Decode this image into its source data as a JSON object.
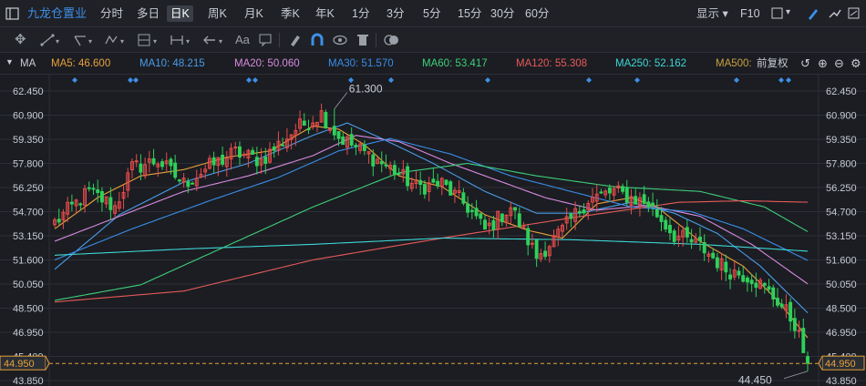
{
  "toolbar": {
    "stock_name": "九龙仓置业",
    "periods": [
      "分时",
      "多日",
      "日K",
      "周K",
      "月K",
      "季K",
      "年K",
      "1分",
      "3分",
      "5分",
      "15分",
      "30分",
      "60分"
    ],
    "active_period": "日K",
    "display_label": "显示",
    "f10_label": "F10"
  },
  "drawing_tools": {
    "text_tool_label": "Aa"
  },
  "ma_bar": {
    "indicator": "MA",
    "adjust_label": "前复权",
    "lines": [
      {
        "label": "MA5:",
        "value": "46.600",
        "color": "#e8a13a"
      },
      {
        "label": "MA10:",
        "value": "48.215",
        "color": "#4a9ce8"
      },
      {
        "label": "MA20:",
        "value": "50.060",
        "color": "#d98ae0"
      },
      {
        "label": "MA30:",
        "value": "51.570",
        "color": "#3a8de8"
      },
      {
        "label": "MA60:",
        "value": "53.417",
        "color": "#3fcf7a"
      },
      {
        "label": "MA120:",
        "value": "55.308",
        "color": "#e85a5a"
      },
      {
        "label": "MA250:",
        "value": "52.162",
        "color": "#3fd6d6"
      },
      {
        "label": "MA500:",
        "value": "",
        "color": "#c8a040"
      }
    ]
  },
  "chart_data": {
    "type": "candlestick",
    "y_ticks": [
      "62.450",
      "60.900",
      "59.350",
      "57.800",
      "56.250",
      "54.700",
      "53.150",
      "51.600",
      "50.050",
      "48.500",
      "46.950",
      "45.400",
      "43.850"
    ],
    "ylim": [
      43.85,
      62.45
    ],
    "current_price": "44.950",
    "high_label": "61.300",
    "low_label": "44.450",
    "colors": {
      "up": "#e84b4b",
      "down": "#2fd05a",
      "grid": "#2c2f36",
      "price_line": "#e8a13a"
    },
    "close_anchors": [
      [
        0,
        54.0
      ],
      [
        8,
        56.0
      ],
      [
        14,
        55.0
      ],
      [
        18,
        57.5
      ],
      [
        24,
        58.0
      ],
      [
        30,
        56.5
      ],
      [
        36,
        57.6
      ],
      [
        42,
        58.5
      ],
      [
        48,
        58.0
      ],
      [
        56,
        60.0
      ],
      [
        62,
        61.0
      ],
      [
        66,
        59.5
      ],
      [
        72,
        58.5
      ],
      [
        78,
        57.5
      ],
      [
        84,
        56.3
      ],
      [
        90,
        56.5
      ],
      [
        96,
        55.0
      ],
      [
        100,
        53.5
      ],
      [
        106,
        55.0
      ],
      [
        112,
        51.8
      ],
      [
        118,
        53.5
      ],
      [
        124,
        55.5
      ],
      [
        130,
        56.0
      ],
      [
        138,
        55.2
      ],
      [
        144,
        53.2
      ],
      [
        150,
        52.5
      ],
      [
        156,
        51.0
      ],
      [
        162,
        50.5
      ],
      [
        168,
        49.0
      ],
      [
        172,
        47.5
      ],
      [
        175,
        44.95
      ]
    ],
    "ma_lines": [
      {
        "name": "MA5",
        "color": "#e8a13a",
        "points": [
          [
            0,
            53.6
          ],
          [
            10,
            55.6
          ],
          [
            20,
            57.0
          ],
          [
            30,
            57.4
          ],
          [
            40,
            58.2
          ],
          [
            50,
            58.6
          ],
          [
            60,
            60.2
          ],
          [
            66,
            60.0
          ],
          [
            72,
            59.0
          ],
          [
            80,
            57.0
          ],
          [
            90,
            56.3
          ],
          [
            100,
            54.5
          ],
          [
            110,
            53.5
          ],
          [
            118,
            53.0
          ],
          [
            126,
            55.2
          ],
          [
            134,
            55.6
          ],
          [
            140,
            55.0
          ],
          [
            150,
            52.8
          ],
          [
            160,
            51.2
          ],
          [
            168,
            49.0
          ],
          [
            175,
            46.6
          ]
        ]
      },
      {
        "name": "MA10",
        "color": "#4a9ce8",
        "points": [
          [
            0,
            51.0
          ],
          [
            15,
            54.5
          ],
          [
            30,
            56.6
          ],
          [
            45,
            57.8
          ],
          [
            60,
            59.6
          ],
          [
            68,
            60.4
          ],
          [
            76,
            59.4
          ],
          [
            88,
            57.8
          ],
          [
            100,
            56.0
          ],
          [
            112,
            54.6
          ],
          [
            122,
            54.6
          ],
          [
            134,
            55.3
          ],
          [
            144,
            54.6
          ],
          [
            154,
            53.3
          ],
          [
            164,
            51.2
          ],
          [
            175,
            48.2
          ]
        ]
      },
      {
        "name": "MA20",
        "color": "#d98ae0",
        "points": [
          [
            0,
            52.8
          ],
          [
            15,
            54.4
          ],
          [
            30,
            56.0
          ],
          [
            45,
            57.0
          ],
          [
            60,
            58.3
          ],
          [
            70,
            59.6
          ],
          [
            80,
            59.2
          ],
          [
            92,
            57.8
          ],
          [
            104,
            56.6
          ],
          [
            114,
            55.6
          ],
          [
            126,
            54.8
          ],
          [
            138,
            55.1
          ],
          [
            150,
            54.4
          ],
          [
            162,
            52.6
          ],
          [
            175,
            50.06
          ]
        ]
      },
      {
        "name": "MA30",
        "color": "#3a8de8",
        "points": [
          [
            0,
            51.6
          ],
          [
            18,
            53.6
          ],
          [
            36,
            55.4
          ],
          [
            52,
            56.9
          ],
          [
            66,
            58.6
          ],
          [
            78,
            59.4
          ],
          [
            92,
            58.4
          ],
          [
            106,
            57.0
          ],
          [
            120,
            56.0
          ],
          [
            134,
            55.0
          ],
          [
            148,
            54.7
          ],
          [
            160,
            53.6
          ],
          [
            175,
            51.57
          ]
        ]
      },
      {
        "name": "MA60",
        "color": "#3fcf7a",
        "points": [
          [
            0,
            49.0
          ],
          [
            20,
            50.0
          ],
          [
            40,
            52.5
          ],
          [
            60,
            55.0
          ],
          [
            80,
            57.2
          ],
          [
            96,
            57.8
          ],
          [
            112,
            57.0
          ],
          [
            130,
            56.3
          ],
          [
            150,
            56.0
          ],
          [
            165,
            55.0
          ],
          [
            175,
            53.42
          ]
        ]
      },
      {
        "name": "MA120",
        "color": "#e85a5a",
        "points": [
          [
            0,
            48.9
          ],
          [
            30,
            49.6
          ],
          [
            60,
            51.6
          ],
          [
            90,
            53.0
          ],
          [
            120,
            54.3
          ],
          [
            145,
            55.3
          ],
          [
            160,
            55.4
          ],
          [
            175,
            55.31
          ]
        ]
      },
      {
        "name": "MA250",
        "color": "#3fd6d6",
        "points": [
          [
            0,
            51.9
          ],
          [
            30,
            52.3
          ],
          [
            60,
            52.6
          ],
          [
            90,
            53.0
          ],
          [
            120,
            52.9
          ],
          [
            150,
            52.6
          ],
          [
            175,
            52.16
          ]
        ]
      }
    ]
  }
}
